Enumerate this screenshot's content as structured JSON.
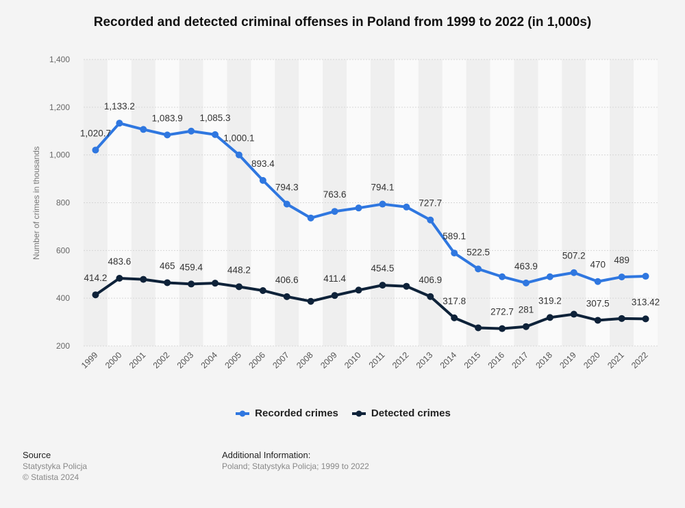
{
  "title": "Recorded and detected criminal offenses in Poland from 1999 to 2022 (in 1,000s)",
  "chart_data": {
    "type": "line",
    "title": "Recorded and detected criminal offenses in Poland from 1999 to 2022 (in 1,000s)",
    "xlabel": "",
    "ylabel": "Number of crimes in thousands",
    "ylim": [
      200,
      1400
    ],
    "yticks": [
      200,
      400,
      600,
      800,
      1000,
      1200,
      1400
    ],
    "ytick_labels": [
      "200",
      "400",
      "600",
      "800",
      "1,000",
      "1,200",
      "1,400"
    ],
    "grid": true,
    "categories": [
      "1999",
      "2000",
      "2001",
      "2002",
      "2003",
      "2004",
      "2005",
      "2006",
      "2007",
      "2008",
      "2009",
      "2010",
      "2011",
      "2012",
      "2013",
      "2014",
      "2015",
      "2016",
      "2017",
      "2018",
      "2019",
      "2020",
      "2021",
      "2022"
    ],
    "series": [
      {
        "name": "Recorded crimes",
        "color": "#2f77e0",
        "values": [
          1020.7,
          1133.2,
          1107,
          1083.9,
          1100,
          1085.3,
          1000.1,
          893.4,
          794.3,
          736,
          763.6,
          778,
          794.1,
          782,
          727.7,
          589.1,
          522.5,
          490,
          463.9,
          490,
          507.2,
          470,
          489,
          492
        ],
        "labels": [
          "1,020.7",
          "1,133.2",
          "",
          "1,083.9",
          "",
          "1,085.3",
          "1,000.1",
          "893.4",
          "794.3",
          "",
          "763.6",
          "",
          "794.1",
          "",
          "727.7",
          "589.1",
          "522.5",
          "",
          "463.9",
          "",
          "507.2",
          "470",
          "489",
          ""
        ]
      },
      {
        "name": "Detected crimes",
        "color": "#0e2239",
        "values": [
          414.2,
          483.6,
          479,
          465,
          459.4,
          463,
          448.2,
          432,
          406.6,
          387,
          411.4,
          434,
          454.5,
          450,
          406.9,
          317.8,
          276,
          272.7,
          281,
          319.2,
          333,
          307.5,
          315,
          313.42
        ],
        "labels": [
          "414.2",
          "483.6",
          "",
          "465",
          "459.4",
          "",
          "448.2",
          "",
          "406.6",
          "",
          "411.4",
          "",
          "454.5",
          "",
          "406.9",
          "317.8",
          "",
          "272.7",
          "281",
          "319.2",
          "",
          "307.5",
          "",
          "313.42"
        ]
      }
    ]
  },
  "legend": [
    "Recorded crimes",
    "Detected crimes"
  ],
  "footer": {
    "source_heading": "Source",
    "source_lines": [
      "Statystyka Policja",
      "© Statista 2024"
    ],
    "info_heading": "Additional Information:",
    "info_text": "Poland; Statystyka Policja; 1999 to 2022"
  }
}
